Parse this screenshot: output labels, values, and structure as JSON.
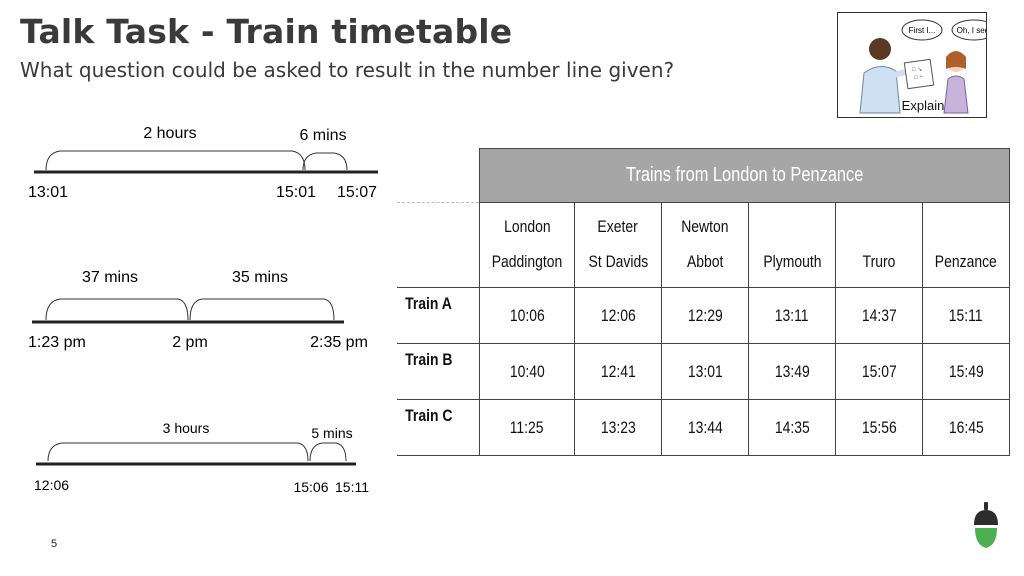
{
  "slide": {
    "title": "Talk Task - Train timetable",
    "subtitle": "What question could be asked to result in the number line given?",
    "page_number": "5"
  },
  "explain_image": {
    "bubble_left": "First I...",
    "bubble_right": "Oh, I see!",
    "label": "Explain"
  },
  "number_lines": [
    {
      "segments": [
        "2 hours",
        "6 mins"
      ],
      "marks": [
        "13:01",
        "15:01",
        "15:07"
      ]
    },
    {
      "segments": [
        "37 mins",
        "35 mins"
      ],
      "marks": [
        "1:23 pm",
        "2 pm",
        "2:35 pm"
      ]
    },
    {
      "segments": [
        "3 hours",
        "5 mins"
      ],
      "marks": [
        "12:06",
        "15:06",
        "15:11"
      ]
    }
  ],
  "timetable": {
    "title": "Trains from London to Penzance",
    "stations": [
      [
        "London",
        "Paddington"
      ],
      [
        "Exeter",
        "St Davids"
      ],
      [
        "Newton",
        "Abbot"
      ],
      [
        "",
        "Plymouth"
      ],
      [
        "",
        "Truro"
      ],
      [
        "",
        "Penzance"
      ]
    ],
    "rows": [
      {
        "train": "Train A",
        "times": [
          "10:06",
          "12:06",
          "12:29",
          "13:11",
          "14:37",
          "15:11"
        ]
      },
      {
        "train": "Train B",
        "times": [
          "10:40",
          "12:41",
          "13:01",
          "13:49",
          "15:07",
          "15:49"
        ]
      },
      {
        "train": "Train C",
        "times": [
          "11:25",
          "13:23",
          "13:44",
          "14:35",
          "15:56",
          "16:45"
        ]
      }
    ]
  },
  "colors": {
    "title_text": "#3a3a3a",
    "table_header_bg": "#a6a6a6",
    "acorn_cap": "#2d2d2d",
    "acorn_body": "#4caf50"
  },
  "icons": [
    "explain-illustration",
    "oak-acorn-logo"
  ]
}
